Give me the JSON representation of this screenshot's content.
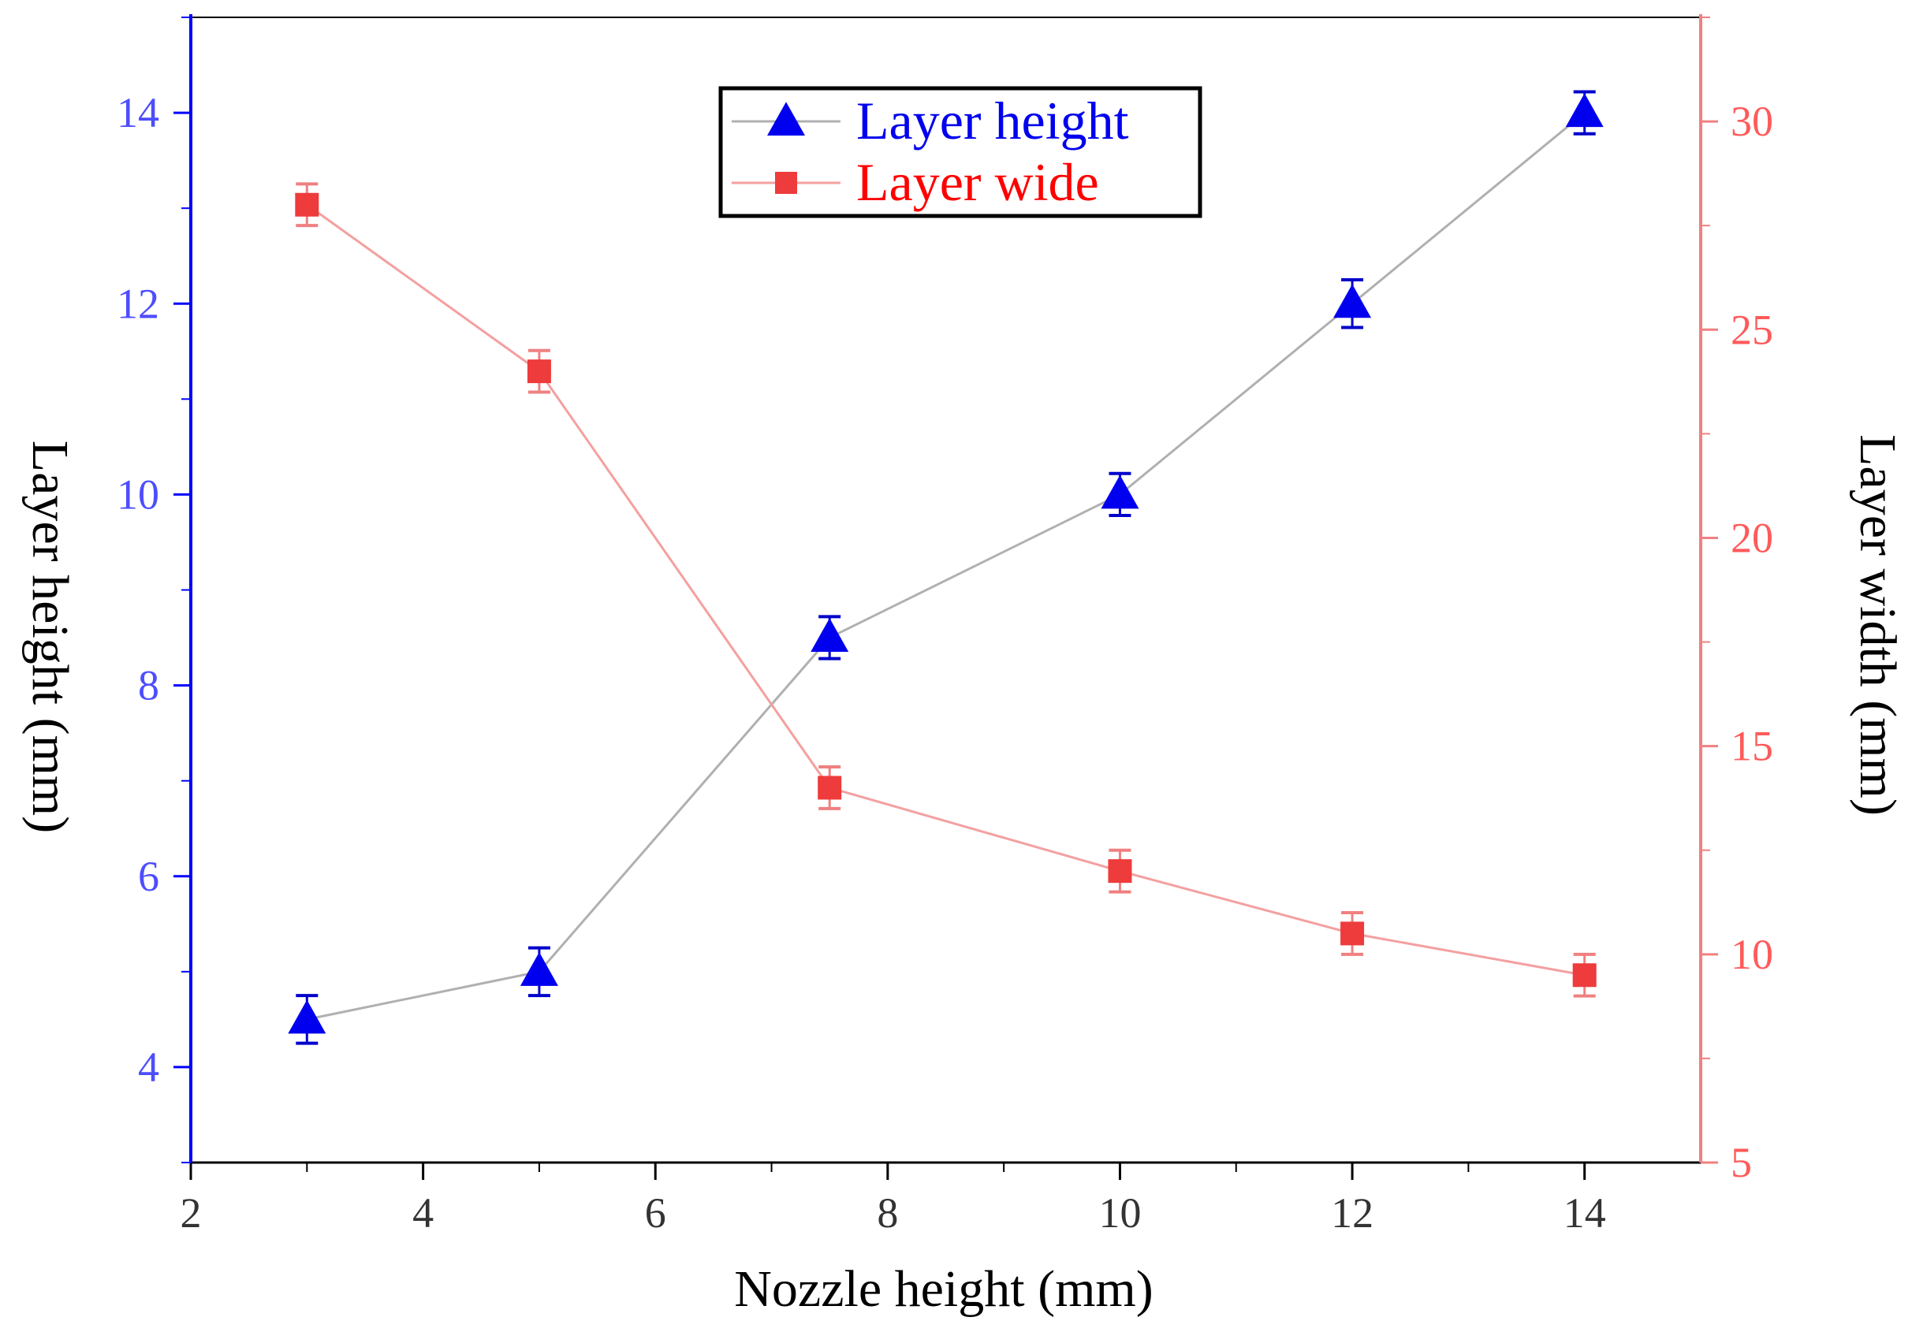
{
  "chart_data": {
    "type": "line",
    "title": "",
    "xlabel": "Nozzle height (mm)",
    "ylabel_left": "Layer height (mm)",
    "ylabel_right": "Layer width (mm)",
    "xlim": [
      2,
      15
    ],
    "ylim_left": [
      3,
      15
    ],
    "ylim_right": [
      5,
      32.5
    ],
    "x_ticks": [
      2,
      4,
      6,
      8,
      10,
      12,
      14
    ],
    "y_left_ticks": [
      4,
      6,
      8,
      10,
      12,
      14
    ],
    "y_right_ticks": [
      5,
      10,
      15,
      20,
      25,
      30
    ],
    "grid": false,
    "legend_position": "top-center",
    "series": [
      {
        "name": "Layer height",
        "axis": "left",
        "marker": "triangle",
        "marker_color": "#0000ee",
        "line_color": "#b0b0b0",
        "label_color": "#0000ee",
        "x": [
          3,
          5,
          7.5,
          10,
          12,
          14
        ],
        "values": [
          4.5,
          5.0,
          8.5,
          10.0,
          12.0,
          14.0
        ],
        "error": [
          0.25,
          0.25,
          0.22,
          0.22,
          0.25,
          0.22
        ]
      },
      {
        "name": "Layer wide",
        "axis": "right",
        "marker": "square",
        "marker_color": "#ee3b3b",
        "line_color": "#f4a0a0",
        "label_color": "#ff0000",
        "x": [
          3,
          5,
          7.5,
          10,
          12,
          14
        ],
        "values": [
          28.0,
          24.0,
          14.0,
          12.0,
          10.5,
          9.5
        ],
        "error": [
          0.5,
          0.5,
          0.5,
          0.5,
          0.5,
          0.5
        ]
      }
    ],
    "colors": {
      "left_axis": "#0000ff",
      "left_tick_labels": "#4d4dff",
      "right_axis": "#f08080",
      "right_tick_labels": "#ff5a5a",
      "frame": "#000000",
      "x_tick_labels": "#333333"
    }
  }
}
